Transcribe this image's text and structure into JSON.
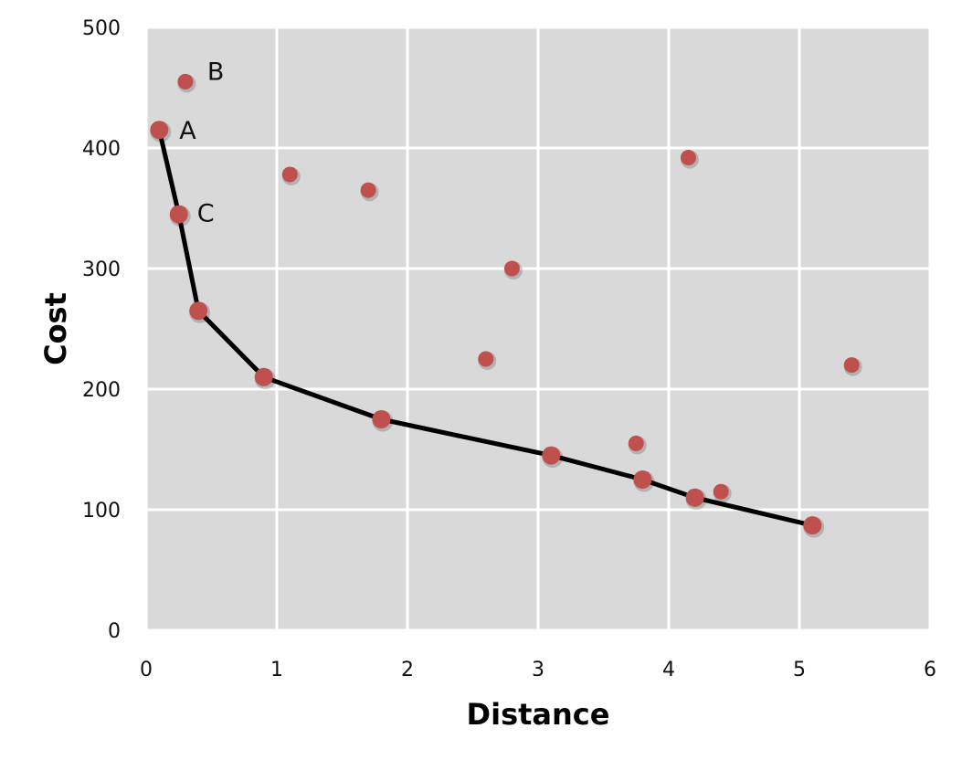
{
  "chart_data": {
    "type": "scatter",
    "xlabel": "Distance",
    "ylabel": "Cost",
    "xlim": [
      0,
      6
    ],
    "ylim": [
      0,
      500
    ],
    "x_ticks": [
      0,
      1,
      2,
      3,
      4,
      5,
      6
    ],
    "y_ticks": [
      0,
      100,
      200,
      300,
      400,
      500
    ],
    "grid": true,
    "colors": {
      "plot_background": "#d9d9d9",
      "grid": "#ffffff",
      "point": "#c0504d",
      "frontier_line": "#000000"
    },
    "series": [
      {
        "role": "frontier",
        "points": [
          {
            "x": 0.1,
            "y": 415,
            "label": "A"
          },
          {
            "x": 0.25,
            "y": 345,
            "label": "C"
          },
          {
            "x": 0.4,
            "y": 265
          },
          {
            "x": 0.9,
            "y": 210
          },
          {
            "x": 1.8,
            "y": 175
          },
          {
            "x": 3.1,
            "y": 145
          },
          {
            "x": 3.8,
            "y": 125
          },
          {
            "x": 4.2,
            "y": 110
          },
          {
            "x": 5.1,
            "y": 87
          }
        ]
      },
      {
        "role": "dominated",
        "points": [
          {
            "x": 0.3,
            "y": 455,
            "label": "B"
          },
          {
            "x": 1.1,
            "y": 378
          },
          {
            "x": 1.7,
            "y": 365
          },
          {
            "x": 2.8,
            "y": 300
          },
          {
            "x": 2.6,
            "y": 225
          },
          {
            "x": 3.75,
            "y": 155
          },
          {
            "x": 4.4,
            "y": 115
          },
          {
            "x": 4.15,
            "y": 392
          },
          {
            "x": 5.4,
            "y": 220
          }
        ]
      }
    ]
  }
}
